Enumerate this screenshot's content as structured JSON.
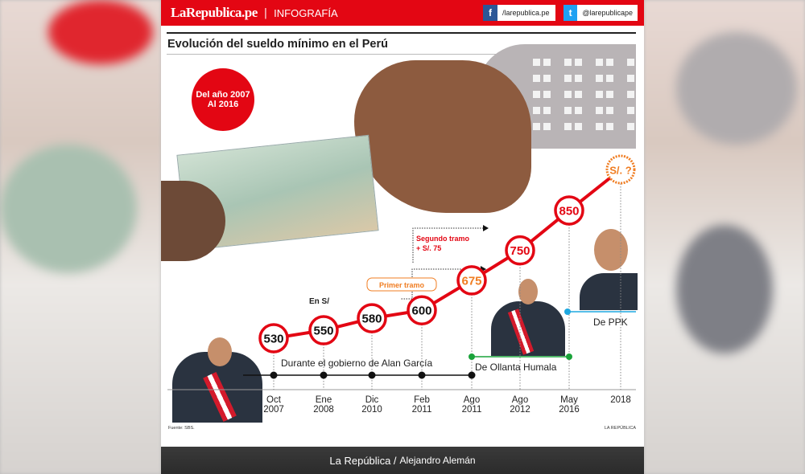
{
  "header": {
    "logo": "LaRepublica.pe",
    "section": "INFOGRAFÍA",
    "facebook": "/larepublica.pe",
    "twitter": "@larepublicape"
  },
  "title": "Evolución del sueldo mínimo en el Perú",
  "badge": {
    "line1": "Del año 2007",
    "line2": "Al 2016"
  },
  "annotations": {
    "unit": "En S/",
    "primer_tramo": "Primer tramo",
    "segundo_tramo_1": "Segundo tramo",
    "segundo_tramo_2": "+ S/. 75",
    "alan": "Durante el gobierno de Alan García",
    "ollanta": "De Ollanta Humala",
    "ppk": "De PPK"
  },
  "source": "Fuente: SBS.",
  "credit": "LA REPÚBLICA",
  "footer": {
    "brand": "La República",
    "author": "Alejandro Alemán"
  },
  "colors": {
    "red": "#e30613",
    "orange": "#f07d22",
    "green": "#1aa33a",
    "blue": "#1ea8e0"
  },
  "chart_data": {
    "type": "line",
    "unit": "En S/",
    "categories": [
      "Oct 2007",
      "Ene 2008",
      "Dic 2010",
      "Feb 2011",
      "Ago 2011",
      "Ago 2012",
      "May 2016",
      "2018"
    ],
    "tick_lines": [
      [
        "Oct",
        "2007"
      ],
      [
        "Ene",
        "2008"
      ],
      [
        "Dic",
        "2010"
      ],
      [
        "Feb",
        "2011"
      ],
      [
        "Ago",
        "2011"
      ],
      [
        "Ago",
        "2012"
      ],
      [
        "May",
        "2016"
      ],
      [
        "2018"
      ]
    ],
    "values": [
      530,
      550,
      580,
      600,
      675,
      750,
      850,
      null
    ],
    "labels": [
      "530",
      "550",
      "580",
      "600",
      "675",
      "750",
      "850",
      "S/. ?"
    ]
  }
}
